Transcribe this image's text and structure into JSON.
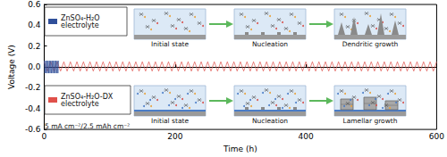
{
  "chart_data": {
    "type": "line",
    "x_label": "Time (h)",
    "y_label": "Voltage (V)",
    "xlim": [
      0,
      600
    ],
    "xticks": [
      0,
      200,
      400,
      600
    ],
    "ylim": [
      -0.6,
      0.6
    ],
    "yticks": [
      -0.6,
      -0.4,
      -0.2,
      {
        "value": 0,
        "label": "0.0"
      },
      0.2,
      0.4,
      0.6
    ],
    "grid": false,
    "annotations": [
      "Initial state",
      "Nucleation",
      "Dendritic growth",
      "Initial state",
      "Nucleation",
      "Lamellar growth",
      "5 mA cm⁻²/2.5 mAh cm⁻²"
    ],
    "series": [
      {
        "name": "ZnSO₄-H₂O electrolyte",
        "color": "#2f4f9a",
        "x": [
          0,
          1,
          2,
          3,
          4,
          5,
          6,
          7,
          8,
          9,
          10,
          11,
          12,
          13,
          14,
          15,
          16,
          17,
          18,
          19,
          20,
          21,
          22
        ],
        "values": [
          0.06,
          -0.06,
          0.06,
          -0.06,
          0.06,
          -0.06,
          0.06,
          -0.06,
          0.06,
          -0.06,
          0.06,
          -0.06,
          0.06,
          -0.06,
          0.06,
          -0.06,
          0.06,
          -0.06,
          0.06,
          -0.06,
          0.06,
          -0.06,
          0.06
        ]
      },
      {
        "name": "ZnSO₄-H₂O-DX electrolyte",
        "color": "#e0504a",
        "x": [
          0,
          5,
          10,
          15,
          20,
          25,
          30,
          35,
          40,
          45,
          50,
          55,
          60,
          65,
          70,
          75,
          80,
          85,
          90,
          95,
          100,
          105,
          110,
          115,
          120,
          125,
          130,
          135,
          140,
          145,
          150,
          155,
          160,
          165,
          170,
          175,
          180,
          185,
          190,
          195,
          200,
          205,
          210,
          215,
          220,
          225,
          230,
          235,
          240,
          245,
          250,
          255,
          260,
          265,
          270,
          275,
          280,
          285,
          290,
          295,
          300,
          305,
          310,
          315,
          320,
          325,
          330,
          335,
          340,
          345,
          350,
          355,
          360,
          365,
          370,
          375,
          380,
          385,
          390,
          395,
          400,
          405,
          410,
          415,
          420,
          425,
          430,
          435,
          440,
          445,
          450,
          455,
          460,
          465,
          470,
          475,
          480,
          485,
          490,
          495,
          500,
          505,
          510,
          515,
          520,
          525,
          530,
          535,
          540,
          545,
          550,
          555,
          560,
          565,
          570,
          575,
          580,
          585,
          590,
          595,
          600
        ],
        "values": [
          0.05,
          -0.04,
          0.05,
          -0.04,
          0.05,
          -0.04,
          0.05,
          -0.04,
          0.05,
          -0.04,
          0.05,
          -0.04,
          0.05,
          -0.04,
          0.05,
          -0.04,
          0.05,
          -0.04,
          0.05,
          -0.04,
          0.05,
          -0.04,
          0.05,
          -0.04,
          0.05,
          -0.04,
          0.05,
          -0.04,
          0.05,
          -0.04,
          0.05,
          -0.04,
          0.05,
          -0.04,
          0.05,
          -0.04,
          0.05,
          -0.04,
          0.05,
          -0.04,
          0.05,
          -0.04,
          0.05,
          -0.04,
          0.05,
          -0.04,
          0.05,
          -0.04,
          0.05,
          -0.04,
          0.05,
          -0.04,
          0.05,
          -0.04,
          0.05,
          -0.04,
          0.05,
          -0.04,
          0.05,
          -0.04,
          0.05,
          -0.04,
          0.05,
          -0.04,
          0.05,
          -0.04,
          0.05,
          -0.04,
          0.05,
          -0.04,
          0.05,
          -0.04,
          0.05,
          -0.04,
          0.05,
          -0.04,
          0.05,
          -0.04,
          0.05,
          -0.04,
          0.05,
          -0.04,
          0.05,
          -0.04,
          0.05,
          -0.04,
          0.05,
          -0.04,
          0.05,
          -0.04,
          0.05,
          -0.04,
          0.05,
          -0.04,
          0.05,
          -0.04,
          0.05,
          -0.04,
          0.05,
          -0.04,
          0.05,
          -0.04,
          0.05,
          -0.04,
          0.05,
          -0.04,
          0.05,
          -0.04,
          0.05,
          -0.04,
          0.05,
          -0.04,
          0.05,
          -0.04,
          0.05,
          -0.04,
          0.05,
          -0.04,
          0.05,
          -0.04,
          0.05
        ]
      }
    ]
  }
}
